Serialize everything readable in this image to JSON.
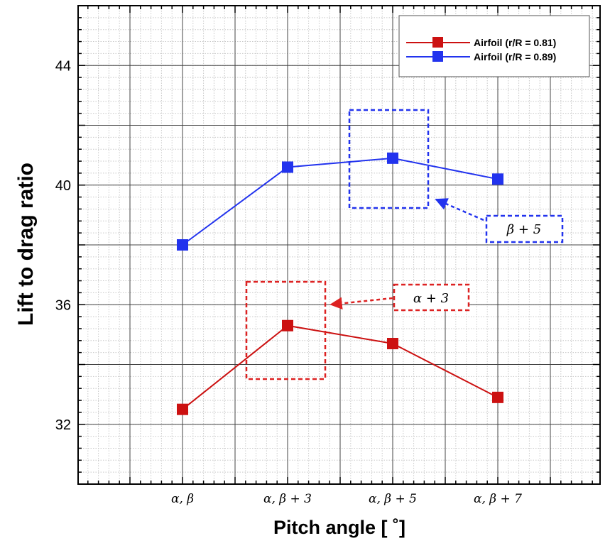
{
  "chart_data": {
    "type": "line",
    "title": "",
    "xlabel": "Pitch angle [ ˚]",
    "ylabel": "Lift to drag ratio",
    "categories": [
      "α, β",
      "α, β + 3",
      "α, β + 5",
      "α, β + 7"
    ],
    "ylim": [
      30,
      46
    ],
    "yticks": [
      32,
      36,
      40,
      44
    ],
    "grid": true,
    "legend_position": "top-right",
    "series": [
      {
        "name": "Airfoil (r/R = 0.81)",
        "color": "#cc1111",
        "values": [
          32.5,
          35.3,
          34.7,
          32.9
        ]
      },
      {
        "name": "Airfoil (r/R = 0.89)",
        "color": "#2233ee",
        "values": [
          38.0,
          40.6,
          40.9,
          40.2
        ]
      }
    ],
    "annotations": [
      {
        "text": "β + 5",
        "color": "#2233ee"
      },
      {
        "text": "α + 3",
        "color": "#dd2222"
      }
    ]
  }
}
